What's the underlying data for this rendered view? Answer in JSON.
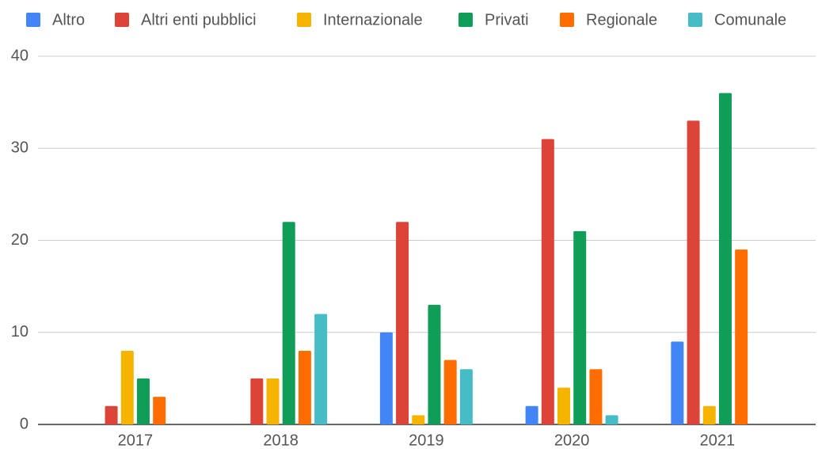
{
  "chart_data": {
    "type": "bar",
    "categories": [
      "2017",
      "2018",
      "2019",
      "2020",
      "2021"
    ],
    "series": [
      {
        "name": "Altro",
        "color": "#4285f4",
        "values": [
          null,
          null,
          10,
          2,
          9
        ]
      },
      {
        "name": "Altri enti pubblici",
        "color": "#db4437",
        "values": [
          2,
          5,
          22,
          31,
          33
        ]
      },
      {
        "name": "Internazionale",
        "color": "#f4b400",
        "values": [
          8,
          5,
          1,
          4,
          2
        ]
      },
      {
        "name": "Privati",
        "color": "#0f9d58",
        "values": [
          5,
          22,
          13,
          21,
          36
        ]
      },
      {
        "name": "Regionale",
        "color": "#ff6d01",
        "values": [
          3,
          8,
          7,
          6,
          19
        ]
      },
      {
        "name": "Comunale",
        "color": "#46bdc6",
        "values": [
          null,
          12,
          6,
          1,
          null
        ]
      }
    ],
    "ylim": [
      0,
      40
    ],
    "yticks": [
      0,
      10,
      20,
      30,
      40
    ],
    "grid": true,
    "legend": "top"
  }
}
